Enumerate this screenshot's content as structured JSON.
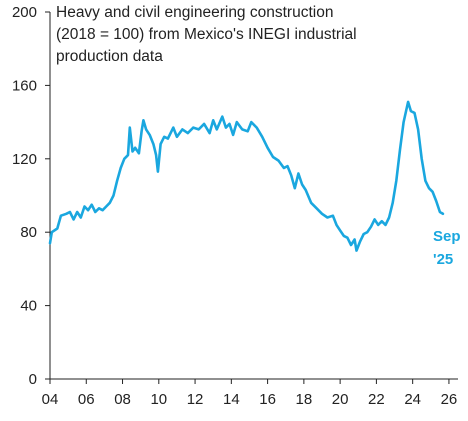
{
  "chart_data": {
    "type": "line",
    "title_lines": [
      "Heavy and civil engineering construction",
      "(2018 = 100) from Mexico's INEGI industrial",
      "production data"
    ],
    "xlabel": "",
    "ylabel": "",
    "x_ticks": [
      "04",
      "06",
      "08",
      "10",
      "12",
      "14",
      "16",
      "18",
      "20",
      "22",
      "24",
      "26"
    ],
    "y_ticks": [
      "0",
      "40",
      "80",
      "120",
      "160",
      "200"
    ],
    "xlim": [
      2004.0,
      2026.5
    ],
    "ylim": [
      0,
      200
    ],
    "grid": false,
    "end_label_lines": [
      "Sep",
      "'25"
    ],
    "series": [
      {
        "color": "#1aa7df",
        "points": [
          [
            2004.0,
            74
          ],
          [
            2004.1,
            80
          ],
          [
            2004.4,
            82
          ],
          [
            2004.6,
            89
          ],
          [
            2004.9,
            90
          ],
          [
            2005.1,
            91
          ],
          [
            2005.3,
            87
          ],
          [
            2005.5,
            91
          ],
          [
            2005.7,
            88
          ],
          [
            2005.9,
            94
          ],
          [
            2006.1,
            92
          ],
          [
            2006.3,
            95
          ],
          [
            2006.5,
            91
          ],
          [
            2006.7,
            93
          ],
          [
            2006.9,
            92
          ],
          [
            2007.1,
            94
          ],
          [
            2007.3,
            96
          ],
          [
            2007.5,
            100
          ],
          [
            2007.7,
            108
          ],
          [
            2007.9,
            115
          ],
          [
            2008.1,
            120
          ],
          [
            2008.3,
            122
          ],
          [
            2008.4,
            137
          ],
          [
            2008.55,
            124
          ],
          [
            2008.7,
            126
          ],
          [
            2008.9,
            123
          ],
          [
            2009.05,
            135
          ],
          [
            2009.15,
            141
          ],
          [
            2009.3,
            136
          ],
          [
            2009.5,
            133
          ],
          [
            2009.7,
            128
          ],
          [
            2009.85,
            122
          ],
          [
            2009.95,
            113
          ],
          [
            2010.1,
            128
          ],
          [
            2010.3,
            132
          ],
          [
            2010.5,
            131
          ],
          [
            2010.8,
            137
          ],
          [
            2011.0,
            132
          ],
          [
            2011.3,
            136
          ],
          [
            2011.6,
            134
          ],
          [
            2011.9,
            137
          ],
          [
            2012.2,
            136
          ],
          [
            2012.5,
            139
          ],
          [
            2012.8,
            134
          ],
          [
            2013.0,
            141
          ],
          [
            2013.2,
            136
          ],
          [
            2013.5,
            143
          ],
          [
            2013.7,
            137
          ],
          [
            2013.9,
            139
          ],
          [
            2014.1,
            133
          ],
          [
            2014.3,
            140
          ],
          [
            2014.6,
            136
          ],
          [
            2014.9,
            135
          ],
          [
            2015.1,
            140
          ],
          [
            2015.4,
            137
          ],
          [
            2015.7,
            132
          ],
          [
            2016.0,
            126
          ],
          [
            2016.3,
            121
          ],
          [
            2016.6,
            119
          ],
          [
            2016.9,
            115
          ],
          [
            2017.1,
            116
          ],
          [
            2017.3,
            111
          ],
          [
            2017.5,
            104
          ],
          [
            2017.7,
            112
          ],
          [
            2017.9,
            106
          ],
          [
            2018.1,
            103
          ],
          [
            2018.4,
            96
          ],
          [
            2018.7,
            93
          ],
          [
            2019.0,
            90
          ],
          [
            2019.3,
            88
          ],
          [
            2019.6,
            89
          ],
          [
            2019.8,
            84
          ],
          [
            2020.0,
            81
          ],
          [
            2020.2,
            78
          ],
          [
            2020.4,
            77
          ],
          [
            2020.6,
            73
          ],
          [
            2020.8,
            76
          ],
          [
            2020.9,
            70
          ],
          [
            2021.1,
            75
          ],
          [
            2021.3,
            79
          ],
          [
            2021.5,
            80
          ],
          [
            2021.7,
            83
          ],
          [
            2021.9,
            87
          ],
          [
            2022.1,
            84
          ],
          [
            2022.3,
            86
          ],
          [
            2022.5,
            84
          ],
          [
            2022.7,
            88
          ],
          [
            2022.9,
            96
          ],
          [
            2023.1,
            108
          ],
          [
            2023.3,
            125
          ],
          [
            2023.5,
            140
          ],
          [
            2023.75,
            151
          ],
          [
            2023.9,
            146
          ],
          [
            2024.1,
            145
          ],
          [
            2024.3,
            136
          ],
          [
            2024.5,
            120
          ],
          [
            2024.7,
            108
          ],
          [
            2024.9,
            104
          ],
          [
            2025.1,
            102
          ],
          [
            2025.3,
            97
          ],
          [
            2025.5,
            91
          ],
          [
            2025.67,
            90
          ]
        ]
      }
    ]
  }
}
